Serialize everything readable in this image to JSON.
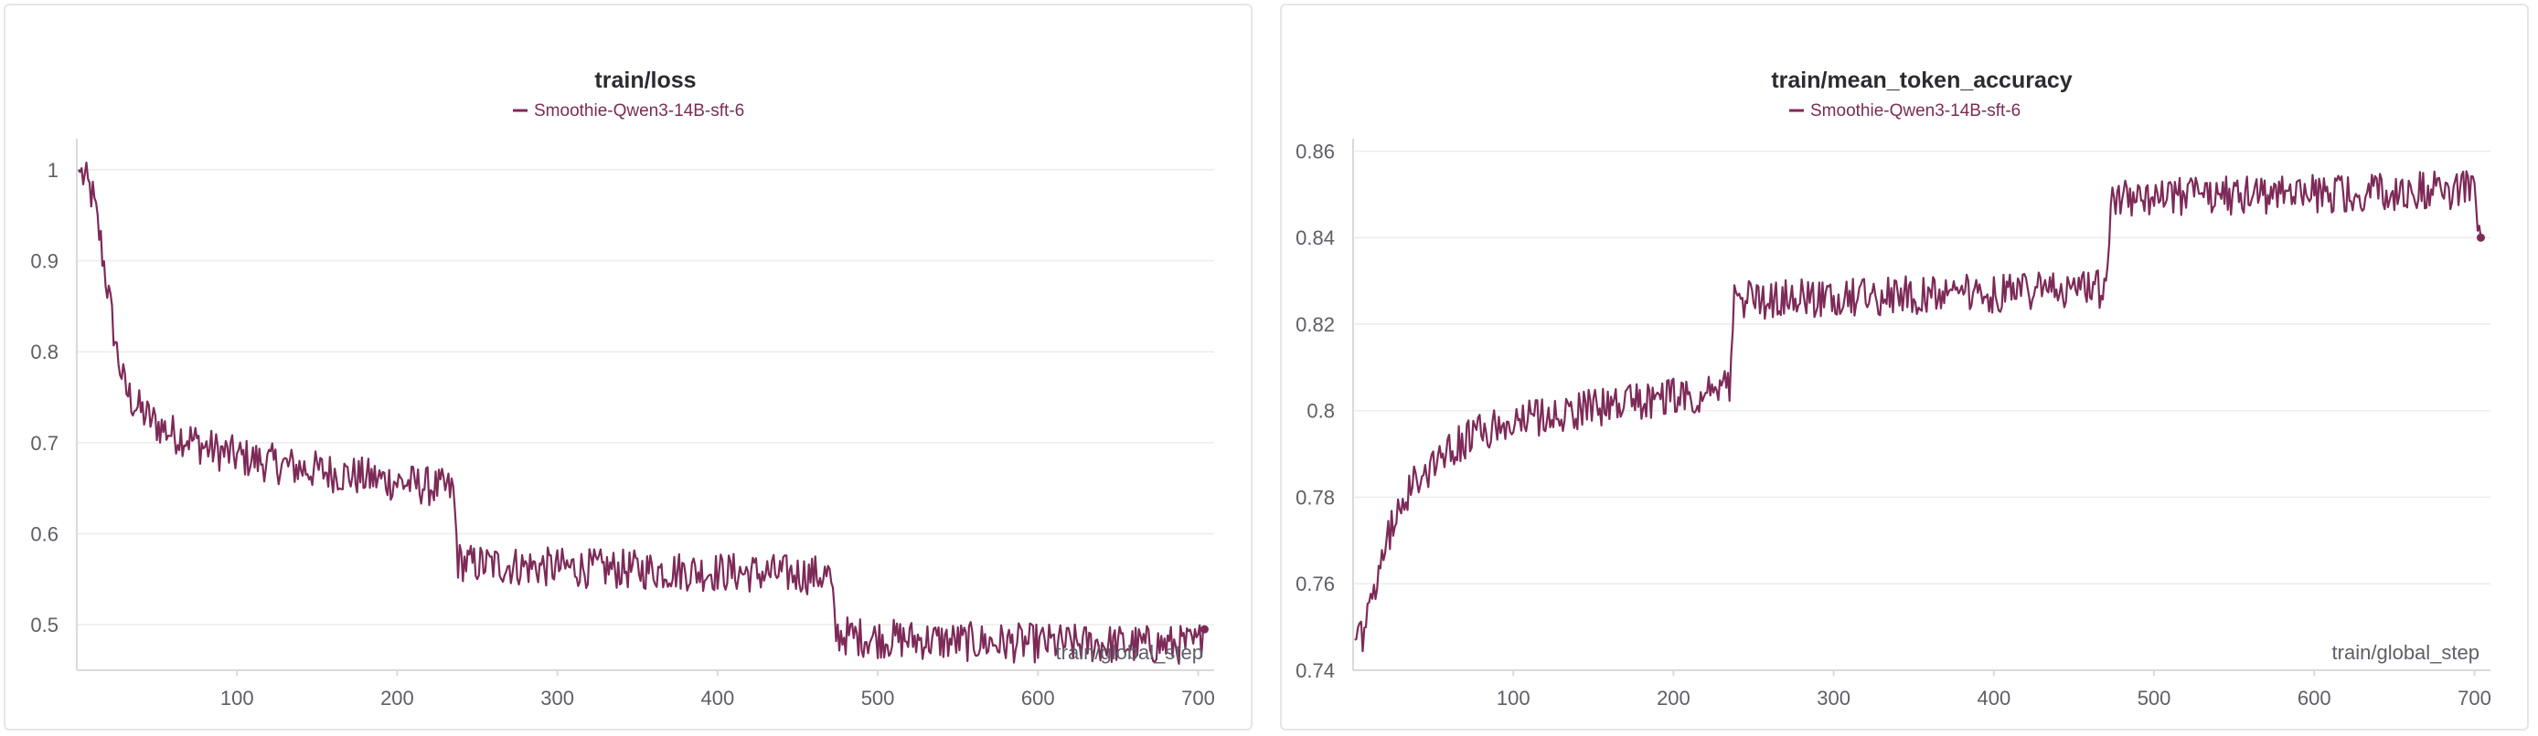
{
  "colors": {
    "series": "#7d2a58"
  },
  "chart_data": [
    {
      "type": "line",
      "title": "train/loss",
      "xlabel": "train/global_step",
      "ylabel": "",
      "legend": "top-center",
      "xlim": [
        0,
        710
      ],
      "ylim": [
        0.45,
        1.03
      ],
      "xticks": [
        100,
        200,
        300,
        400,
        500,
        600,
        700
      ],
      "yticks": [
        0.5,
        0.6,
        0.7,
        0.8,
        0.9,
        1
      ],
      "ytick_labels": [
        "0.5",
        "0.6",
        "0.7",
        "0.8",
        "0.9",
        "1"
      ],
      "series": [
        {
          "name": "Smoothie-Qwen3-14B-sft-6",
          "points": [
            [
              1,
              1.0
            ],
            [
              5,
              0.99
            ],
            [
              10,
              0.97
            ],
            [
              15,
              0.92
            ],
            [
              20,
              0.86
            ],
            [
              25,
              0.8
            ],
            [
              30,
              0.76
            ],
            [
              35,
              0.745
            ],
            [
              40,
              0.735
            ],
            [
              50,
              0.72
            ],
            [
              60,
              0.71
            ],
            [
              70,
              0.705
            ],
            [
              80,
              0.695
            ],
            [
              100,
              0.685
            ],
            [
              120,
              0.678
            ],
            [
              140,
              0.672
            ],
            [
              160,
              0.667
            ],
            [
              180,
              0.662
            ],
            [
              200,
              0.657
            ],
            [
              220,
              0.652
            ],
            [
              235,
              0.648
            ],
            [
              238,
              0.57
            ],
            [
              245,
              0.567
            ],
            [
              260,
              0.566
            ],
            [
              280,
              0.564
            ],
            [
              300,
              0.563
            ],
            [
              320,
              0.562
            ],
            [
              340,
              0.561
            ],
            [
              360,
              0.56
            ],
            [
              380,
              0.559
            ],
            [
              400,
              0.558
            ],
            [
              420,
              0.557
            ],
            [
              440,
              0.556
            ],
            [
              460,
              0.555
            ],
            [
              470,
              0.554
            ],
            [
              474,
              0.49
            ],
            [
              480,
              0.488
            ],
            [
              500,
              0.485
            ],
            [
              520,
              0.484
            ],
            [
              540,
              0.482
            ],
            [
              560,
              0.481
            ],
            [
              580,
              0.48
            ],
            [
              600,
              0.48
            ],
            [
              620,
              0.479
            ],
            [
              640,
              0.479
            ],
            [
              660,
              0.478
            ],
            [
              680,
              0.478
            ],
            [
              700,
              0.478
            ],
            [
              704,
              0.495
            ]
          ]
        }
      ]
    },
    {
      "type": "line",
      "title": "train/mean_token_accuracy",
      "xlabel": "train/global_step",
      "ylabel": "",
      "legend": "top-center",
      "xlim": [
        0,
        710
      ],
      "ylim": [
        0.74,
        0.862
      ],
      "xticks": [
        100,
        200,
        300,
        400,
        500,
        600,
        700
      ],
      "yticks": [
        0.74,
        0.76,
        0.78,
        0.8,
        0.82,
        0.84,
        0.86
      ],
      "ytick_labels": [
        "0.74",
        "0.76",
        "0.78",
        "0.8",
        "0.82",
        "0.84",
        "0.86"
      ],
      "series": [
        {
          "name": "Smoothie-Qwen3-14B-sft-6",
          "points": [
            [
              1,
              0.747
            ],
            [
              5,
              0.748
            ],
            [
              10,
              0.752
            ],
            [
              15,
              0.76
            ],
            [
              20,
              0.768
            ],
            [
              25,
              0.774
            ],
            [
              30,
              0.779
            ],
            [
              40,
              0.784
            ],
            [
              50,
              0.788
            ],
            [
              60,
              0.791
            ],
            [
              70,
              0.793
            ],
            [
              80,
              0.795
            ],
            [
              100,
              0.797
            ],
            [
              120,
              0.799
            ],
            [
              140,
              0.8
            ],
            [
              160,
              0.801
            ],
            [
              180,
              0.802
            ],
            [
              200,
              0.803
            ],
            [
              220,
              0.804
            ],
            [
              235,
              0.805
            ],
            [
              238,
              0.826
            ],
            [
              245,
              0.826
            ],
            [
              260,
              0.8255
            ],
            [
              280,
              0.826
            ],
            [
              300,
              0.826
            ],
            [
              320,
              0.8265
            ],
            [
              340,
              0.8265
            ],
            [
              360,
              0.827
            ],
            [
              380,
              0.827
            ],
            [
              400,
              0.827
            ],
            [
              420,
              0.8275
            ],
            [
              440,
              0.8275
            ],
            [
              460,
              0.828
            ],
            [
              470,
              0.828
            ],
            [
              474,
              0.849
            ],
            [
              480,
              0.849
            ],
            [
              500,
              0.849
            ],
            [
              520,
              0.8495
            ],
            [
              540,
              0.8495
            ],
            [
              560,
              0.85
            ],
            [
              580,
              0.85
            ],
            [
              600,
              0.85
            ],
            [
              620,
              0.8505
            ],
            [
              640,
              0.8505
            ],
            [
              660,
              0.851
            ],
            [
              680,
              0.851
            ],
            [
              700,
              0.851
            ],
            [
              704,
              0.84
            ]
          ]
        }
      ]
    }
  ]
}
